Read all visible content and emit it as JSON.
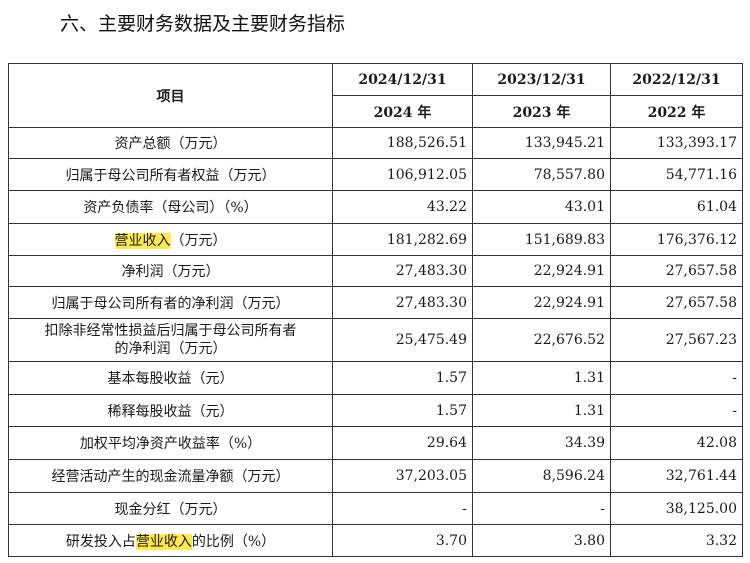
{
  "title": "六、主要财务数据及主要财务指标",
  "table": {
    "item_header": "项目",
    "columns": [
      {
        "date": "2024/12/31",
        "year": "2024 年"
      },
      {
        "date": "2023/12/31",
        "year": "2023 年"
      },
      {
        "date": "2022/12/31",
        "year": "2022 年"
      }
    ],
    "rows": [
      {
        "label": "资产总额（万元）",
        "values": [
          "188,526.51",
          "133,945.21",
          "133,393.17"
        ]
      },
      {
        "label": "归属于母公司所有者权益（万元）",
        "values": [
          "106,912.05",
          "78,557.80",
          "54,771.16"
        ]
      },
      {
        "label": "资产负债率（母公司）（%）",
        "values": [
          "43.22",
          "43.01",
          "61.04"
        ]
      },
      {
        "label_pre": "",
        "label_hl": "营业收入",
        "label_post": "（万元）",
        "values": [
          "181,282.69",
          "151,689.83",
          "176,376.12"
        ]
      },
      {
        "label": "净利润（万元）",
        "values": [
          "27,483.30",
          "22,924.91",
          "27,657.58"
        ]
      },
      {
        "label": "归属于母公司所有者的净利润（万元）",
        "values": [
          "27,483.30",
          "22,924.91",
          "27,657.58"
        ]
      },
      {
        "label_line1": "扣除非经常性损益后归属于母公司所有者",
        "label_line2": "的净利润（万元）",
        "values": [
          "25,475.49",
          "22,676.52",
          "27,567.23"
        ]
      },
      {
        "label": "基本每股收益（元）",
        "values": [
          "1.57",
          "1.31",
          "-"
        ]
      },
      {
        "label": "稀释每股收益（元）",
        "values": [
          "1.57",
          "1.31",
          "-"
        ]
      },
      {
        "label": "加权平均净资产收益率（%）",
        "values": [
          "29.64",
          "34.39",
          "42.08"
        ]
      },
      {
        "label": "经营活动产生的现金流量净额（万元）",
        "values": [
          "37,203.05",
          "8,596.24",
          "32,761.44"
        ]
      },
      {
        "label": "现金分红（万元）",
        "values": [
          "-",
          "-",
          "38,125.00"
        ]
      },
      {
        "label_pre": "研发投入占",
        "label_hl": "营业收入",
        "label_post": "的比例（%）",
        "values": [
          "3.70",
          "3.80",
          "3.32"
        ]
      }
    ]
  }
}
